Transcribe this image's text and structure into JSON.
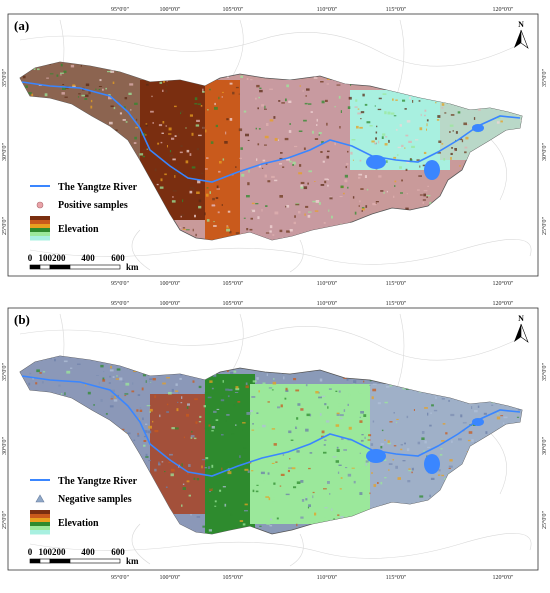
{
  "panels": [
    {
      "label": "(a)",
      "samples_label": "Positive samples",
      "samples_symbol": "circle",
      "samples_color": "#e9a3a8"
    },
    {
      "label": "(b)",
      "samples_label": "Negative samples",
      "samples_symbol": "triangle",
      "samples_color": "#8fa8c8"
    }
  ],
  "legend": {
    "river_label": "The Yangtze River",
    "river_color": "#3a86ff",
    "elevation_label": "Elevation",
    "elevation_ramp": [
      "#7a2e10",
      "#c95a1c",
      "#e8a020",
      "#2e8b2e",
      "#9be89b",
      "#a8f0e0"
    ]
  },
  "scale": {
    "ticks": [
      "0",
      "100200",
      "400",
      "600"
    ],
    "unit": "km"
  },
  "north_label": "N",
  "longitude_ticks": [
    "95°0'0\"",
    "100°0'0\"",
    "105°0'0\"",
    "110°0'0\"",
    "115°0'0\"",
    "120°0'0\""
  ],
  "latitude_ticks": [
    "35°0'0\"",
    "30°0'0\"",
    "25°0'0\""
  ]
}
